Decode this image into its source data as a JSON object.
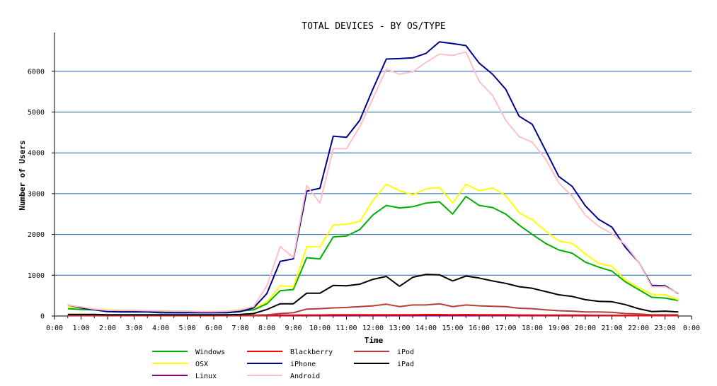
{
  "chart_data": {
    "type": "line",
    "title": "TOTAL DEVICES - BY OS/TYPE",
    "xlabel": "Time",
    "ylabel": "Number of Users",
    "x_ticks": [
      "0:00",
      "1:00",
      "2:00",
      "3:00",
      "4:00",
      "5:00",
      "6:00",
      "7:00",
      "8:00",
      "9:00",
      "10:00",
      "11:00",
      "12:00",
      "13:00",
      "14:00",
      "15:00",
      "16:00",
      "17:00",
      "18:00",
      "19:00",
      "20:00",
      "21:00",
      "22:00",
      "23:00",
      "0:00"
    ],
    "y_ticks": [
      0,
      1000,
      2000,
      3000,
      4000,
      5000,
      6000
    ],
    "xlim": [
      0,
      24
    ],
    "ylim": [
      0,
      6950
    ],
    "grid": "horizontal",
    "grid_color": "#1a5fa8",
    "legend_position": "bottom-left",
    "x": [
      0.5,
      1,
      1.5,
      2,
      2.5,
      3,
      3.5,
      4,
      4.5,
      5,
      5.5,
      6,
      6.5,
      7,
      7.5,
      8,
      8.5,
      9,
      9.5,
      10,
      10.5,
      11,
      11.5,
      12,
      12.5,
      13,
      13.5,
      14,
      14.5,
      15,
      15.5,
      16,
      16.5,
      17,
      17.5,
      18,
      18.5,
      19,
      19.5,
      20,
      20.5,
      21,
      21.5,
      22,
      22.5,
      23,
      23.5
    ],
    "series": [
      {
        "name": "Windows",
        "color": "#00b000",
        "values": [
          180,
          160,
          150,
          140,
          130,
          130,
          120,
          120,
          110,
          110,
          100,
          100,
          100,
          120,
          150,
          300,
          620,
          650,
          1430,
          1400,
          1940,
          1960,
          2120,
          2480,
          2710,
          2650,
          2680,
          2770,
          2800,
          2500,
          2930,
          2710,
          2660,
          2500,
          2230,
          2000,
          1780,
          1620,
          1540,
          1320,
          1200,
          1100,
          840,
          650,
          460,
          440,
          380
        ]
      },
      {
        "name": "OSX",
        "color": "#ffff00",
        "values": [
          230,
          200,
          170,
          150,
          140,
          140,
          130,
          130,
          120,
          120,
          110,
          110,
          120,
          150,
          200,
          340,
          740,
          720,
          1700,
          1700,
          2230,
          2250,
          2320,
          2840,
          3230,
          3070,
          2970,
          3120,
          3150,
          2770,
          3230,
          3070,
          3140,
          2950,
          2530,
          2360,
          2080,
          1840,
          1780,
          1520,
          1290,
          1220,
          880,
          700,
          530,
          520,
          400
        ]
      },
      {
        "name": "Linux",
        "color": "#800080",
        "values": [
          10,
          10,
          10,
          10,
          10,
          10,
          10,
          10,
          10,
          10,
          10,
          10,
          10,
          10,
          10,
          10,
          10,
          10,
          10,
          10,
          10,
          10,
          10,
          10,
          10,
          10,
          10,
          10,
          10,
          10,
          10,
          10,
          10,
          10,
          10,
          10,
          10,
          10,
          10,
          10,
          10,
          10,
          10,
          10,
          10,
          10,
          10
        ]
      },
      {
        "name": "Blackberry",
        "color": "#ff0000",
        "values": [
          10,
          10,
          10,
          10,
          10,
          10,
          10,
          10,
          10,
          10,
          10,
          10,
          10,
          10,
          10,
          15,
          20,
          20,
          25,
          25,
          30,
          30,
          30,
          30,
          30,
          30,
          30,
          35,
          35,
          30,
          35,
          30,
          30,
          30,
          25,
          25,
          20,
          20,
          20,
          20,
          15,
          15,
          15,
          10,
          10,
          10,
          10
        ]
      },
      {
        "name": "iPhone",
        "color": "#00008b",
        "values": [
          270,
          200,
          150,
          110,
          100,
          100,
          100,
          80,
          80,
          80,
          80,
          80,
          80,
          110,
          200,
          550,
          1340,
          1400,
          3060,
          3130,
          4410,
          4380,
          4800,
          5570,
          6300,
          6310,
          6330,
          6440,
          6720,
          6680,
          6630,
          6200,
          5930,
          5560,
          4900,
          4700,
          4060,
          3420,
          3180,
          2700,
          2370,
          2180,
          1690,
          1330,
          750,
          740,
          550
        ]
      },
      {
        "name": "Android",
        "color": "#ffc0cb",
        "values": [
          270,
          220,
          170,
          140,
          140,
          140,
          130,
          130,
          120,
          120,
          110,
          110,
          120,
          150,
          230,
          740,
          1700,
          1440,
          3200,
          2770,
          4100,
          4100,
          4640,
          5340,
          6050,
          5930,
          5990,
          6220,
          6420,
          6390,
          6470,
          5750,
          5410,
          4800,
          4400,
          4260,
          3850,
          3260,
          2940,
          2470,
          2200,
          2020,
          1750,
          1330,
          720,
          720,
          560
        ]
      },
      {
        "name": "iPod",
        "color": "#b04040",
        "values": [
          20,
          20,
          20,
          20,
          20,
          20,
          20,
          20,
          20,
          20,
          20,
          20,
          20,
          20,
          20,
          30,
          60,
          80,
          170,
          180,
          200,
          210,
          230,
          250,
          290,
          230,
          270,
          270,
          300,
          230,
          270,
          250,
          240,
          230,
          190,
          180,
          150,
          130,
          120,
          100,
          100,
          90,
          60,
          50,
          30,
          30,
          30
        ]
      },
      {
        "name": "iPad",
        "color": "#000000",
        "values": [
          40,
          40,
          40,
          30,
          30,
          30,
          30,
          30,
          30,
          30,
          30,
          30,
          30,
          40,
          60,
          160,
          300,
          300,
          560,
          560,
          750,
          740,
          780,
          900,
          970,
          730,
          950,
          1020,
          1010,
          860,
          980,
          930,
          860,
          800,
          720,
          680,
          600,
          520,
          480,
          400,
          360,
          350,
          280,
          180,
          110,
          120,
          100
        ]
      }
    ],
    "legend": {
      "columns": [
        [
          "Windows",
          "OSX",
          "Linux"
        ],
        [
          "Blackberry",
          "iPhone",
          "Android"
        ],
        [
          "iPod",
          "iPad"
        ]
      ]
    }
  }
}
